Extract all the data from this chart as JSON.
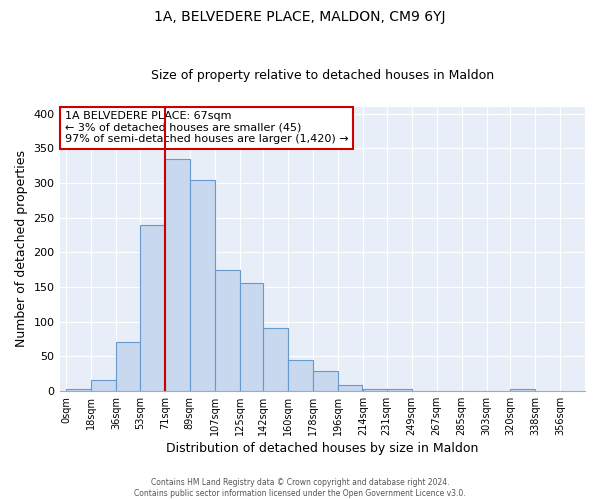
{
  "title": "1A, BELVEDERE PLACE, MALDON, CM9 6YJ",
  "subtitle": "Size of property relative to detached houses in Maldon",
  "xlabel": "Distribution of detached houses by size in Maldon",
  "ylabel": "Number of detached properties",
  "bar_left_edges": [
    0,
    18,
    36,
    53,
    71,
    89,
    107,
    125,
    142,
    160,
    178,
    196,
    214,
    231,
    249,
    267,
    285,
    303,
    320,
    338
  ],
  "bar_heights": [
    2,
    15,
    70,
    240,
    335,
    305,
    175,
    155,
    90,
    44,
    28,
    8,
    2,
    2,
    0,
    0,
    0,
    0,
    2
  ],
  "bar_widths": [
    18,
    18,
    17,
    18,
    18,
    18,
    18,
    17,
    18,
    18,
    18,
    17,
    18,
    18,
    18,
    18,
    18,
    17,
    18
  ],
  "bar_color": "#c8d8ee",
  "bar_edgecolor": "#6699cc",
  "x_tick_labels": [
    "0sqm",
    "18sqm",
    "36sqm",
    "53sqm",
    "71sqm",
    "89sqm",
    "107sqm",
    "125sqm",
    "142sqm",
    "160sqm",
    "178sqm",
    "196sqm",
    "214sqm",
    "231sqm",
    "249sqm",
    "267sqm",
    "285sqm",
    "303sqm",
    "320sqm",
    "338sqm",
    "356sqm"
  ],
  "x_tick_positions": [
    0,
    18,
    36,
    53,
    71,
    89,
    107,
    125,
    142,
    160,
    178,
    196,
    214,
    231,
    249,
    267,
    285,
    303,
    320,
    338,
    356
  ],
  "ylim": [
    0,
    410
  ],
  "xlim": [
    -5,
    374
  ],
  "y_ticks": [
    0,
    50,
    100,
    150,
    200,
    250,
    300,
    350,
    400
  ],
  "vline_x": 71,
  "vline_color": "#cc0000",
  "annotation_title": "1A BELVEDERE PLACE: 67sqm",
  "annotation_line2": "← 3% of detached houses are smaller (45)",
  "annotation_line3": "97% of semi-detached houses are larger (1,420) →",
  "annotation_box_edgecolor": "#cc0000",
  "footer_line1": "Contains HM Land Registry data © Crown copyright and database right 2024.",
  "footer_line2": "Contains public sector information licensed under the Open Government Licence v3.0.",
  "fig_bg_color": "#ffffff",
  "plot_bg_color": "#e8eef8"
}
